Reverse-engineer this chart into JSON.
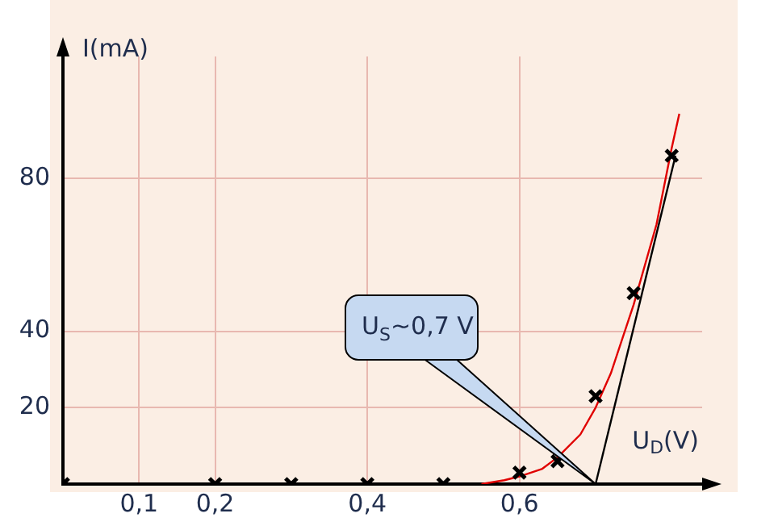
{
  "chart_data": {
    "type": "scatter",
    "xlabel": "U$_{D}$(V)",
    "ylabel": "I(mA)",
    "xlim": [
      0,
      0.84
    ],
    "ylim": [
      0,
      112
    ],
    "xticks": [
      {
        "value": 0.1,
        "label": "0,1"
      },
      {
        "value": 0.2,
        "label": "0,2"
      },
      {
        "value": 0.4,
        "label": "0,4"
      },
      {
        "value": 0.6,
        "label": "0,6"
      }
    ],
    "yticks": [
      20,
      40,
      80
    ],
    "grid": true,
    "marker": "cross",
    "series": [
      {
        "type": "scatter",
        "color": "#000000",
        "x": [
          0,
          0.2,
          0.3,
          0.4,
          0.5,
          0.6,
          0.65,
          0.7,
          0.75,
          0.8
        ],
        "values": [
          0,
          0,
          0,
          0,
          0,
          3,
          6,
          23,
          50,
          86
        ]
      },
      {
        "type": "line",
        "color": "#e00000",
        "marker": "none",
        "x": [
          0.55,
          0.58,
          0.6,
          0.63,
          0.65,
          0.68,
          0.7,
          0.72,
          0.75,
          0.78,
          0.8,
          0.81
        ],
        "values": [
          0,
          1,
          2,
          4,
          7,
          13,
          20,
          29,
          47,
          68,
          88,
          97
        ]
      },
      {
        "type": "line",
        "color": "#000000",
        "marker": "none",
        "x": [
          0.7,
          0.805
        ],
        "values": [
          0,
          86
        ]
      }
    ],
    "annotations": [
      "U$_{S}$~0,7 V"
    ]
  }
}
